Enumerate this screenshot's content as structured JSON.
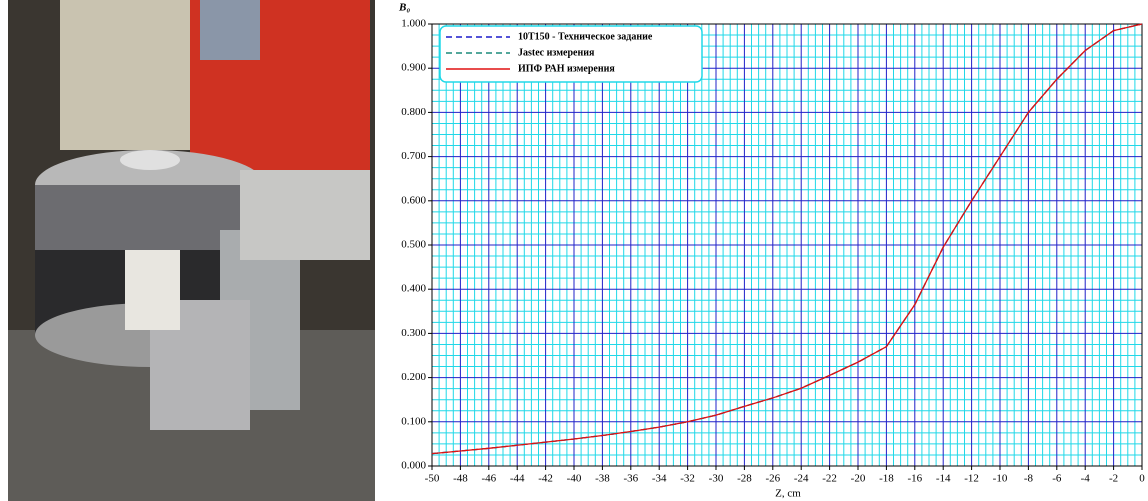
{
  "chart_data": {
    "type": "line",
    "y_label": "B₀",
    "x_label": "Z, cm",
    "x": [
      -50,
      -48,
      -46,
      -44,
      -42,
      -40,
      -38,
      -36,
      -34,
      -32,
      -30,
      -28,
      -26,
      -24,
      -22,
      -20,
      -18,
      -16,
      -14,
      -12,
      -10,
      -8,
      -6,
      -4,
      -2,
      0
    ],
    "series": [
      {
        "name": "10Т150 - Техническое задание",
        "color": "#1a1acc",
        "linestyle": "dashed",
        "values": [
          0.028,
          0.034,
          0.04,
          0.047,
          0.054,
          0.061,
          0.069,
          0.078,
          0.088,
          0.1,
          0.115,
          0.135,
          0.154,
          0.176,
          0.205,
          0.235,
          0.27,
          0.365,
          0.495,
          0.6,
          0.7,
          0.8,
          0.875,
          0.94,
          0.985,
          1.0
        ]
      },
      {
        "name": "Jastec измерения",
        "color": "#1a8a7a",
        "linestyle": "dashed",
        "values": [
          0.028,
          0.034,
          0.04,
          0.047,
          0.054,
          0.061,
          0.069,
          0.078,
          0.088,
          0.1,
          0.115,
          0.135,
          0.154,
          0.176,
          0.205,
          0.235,
          0.27,
          0.365,
          0.495,
          0.6,
          0.7,
          0.8,
          0.875,
          0.94,
          0.985,
          1.0
        ]
      },
      {
        "name": "ИПФ РАН измерения",
        "color": "#e01010",
        "linestyle": "solid",
        "values": [
          0.028,
          0.034,
          0.04,
          0.047,
          0.054,
          0.061,
          0.069,
          0.078,
          0.088,
          0.1,
          0.115,
          0.135,
          0.154,
          0.176,
          0.205,
          0.235,
          0.27,
          0.365,
          0.495,
          0.6,
          0.7,
          0.8,
          0.875,
          0.94,
          0.985,
          1.0
        ]
      }
    ],
    "xlim": [
      -50,
      0
    ],
    "ylim": [
      0,
      1
    ],
    "xticks": [
      -50,
      -48,
      -46,
      -44,
      -42,
      -40,
      -38,
      -36,
      -34,
      -32,
      -30,
      -28,
      -26,
      -24,
      -22,
      -20,
      -18,
      -16,
      -14,
      -12,
      -10,
      -8,
      -6,
      -4,
      -2,
      0
    ],
    "yticks": [
      {
        "value": 0,
        "label": "0.000"
      },
      {
        "value": 0.1,
        "label": "0.100"
      },
      {
        "value": 0.2,
        "label": "0.200"
      },
      {
        "value": 0.3,
        "label": "0.300"
      },
      {
        "value": 0.4,
        "label": "0.400"
      },
      {
        "value": 0.5,
        "label": "0.500"
      },
      {
        "value": 0.6,
        "label": "0.600"
      },
      {
        "value": 0.7,
        "label": "0.700"
      },
      {
        "value": 0.8,
        "label": "0.800"
      },
      {
        "value": 0.9,
        "label": "0.900"
      },
      {
        "value": 1,
        "label": "1.000"
      }
    ],
    "grid": true,
    "grid_color": "#2020c8",
    "minor_grid_color": "#20d8e8",
    "minor_divisions": 4,
    "legend": "upper left"
  }
}
